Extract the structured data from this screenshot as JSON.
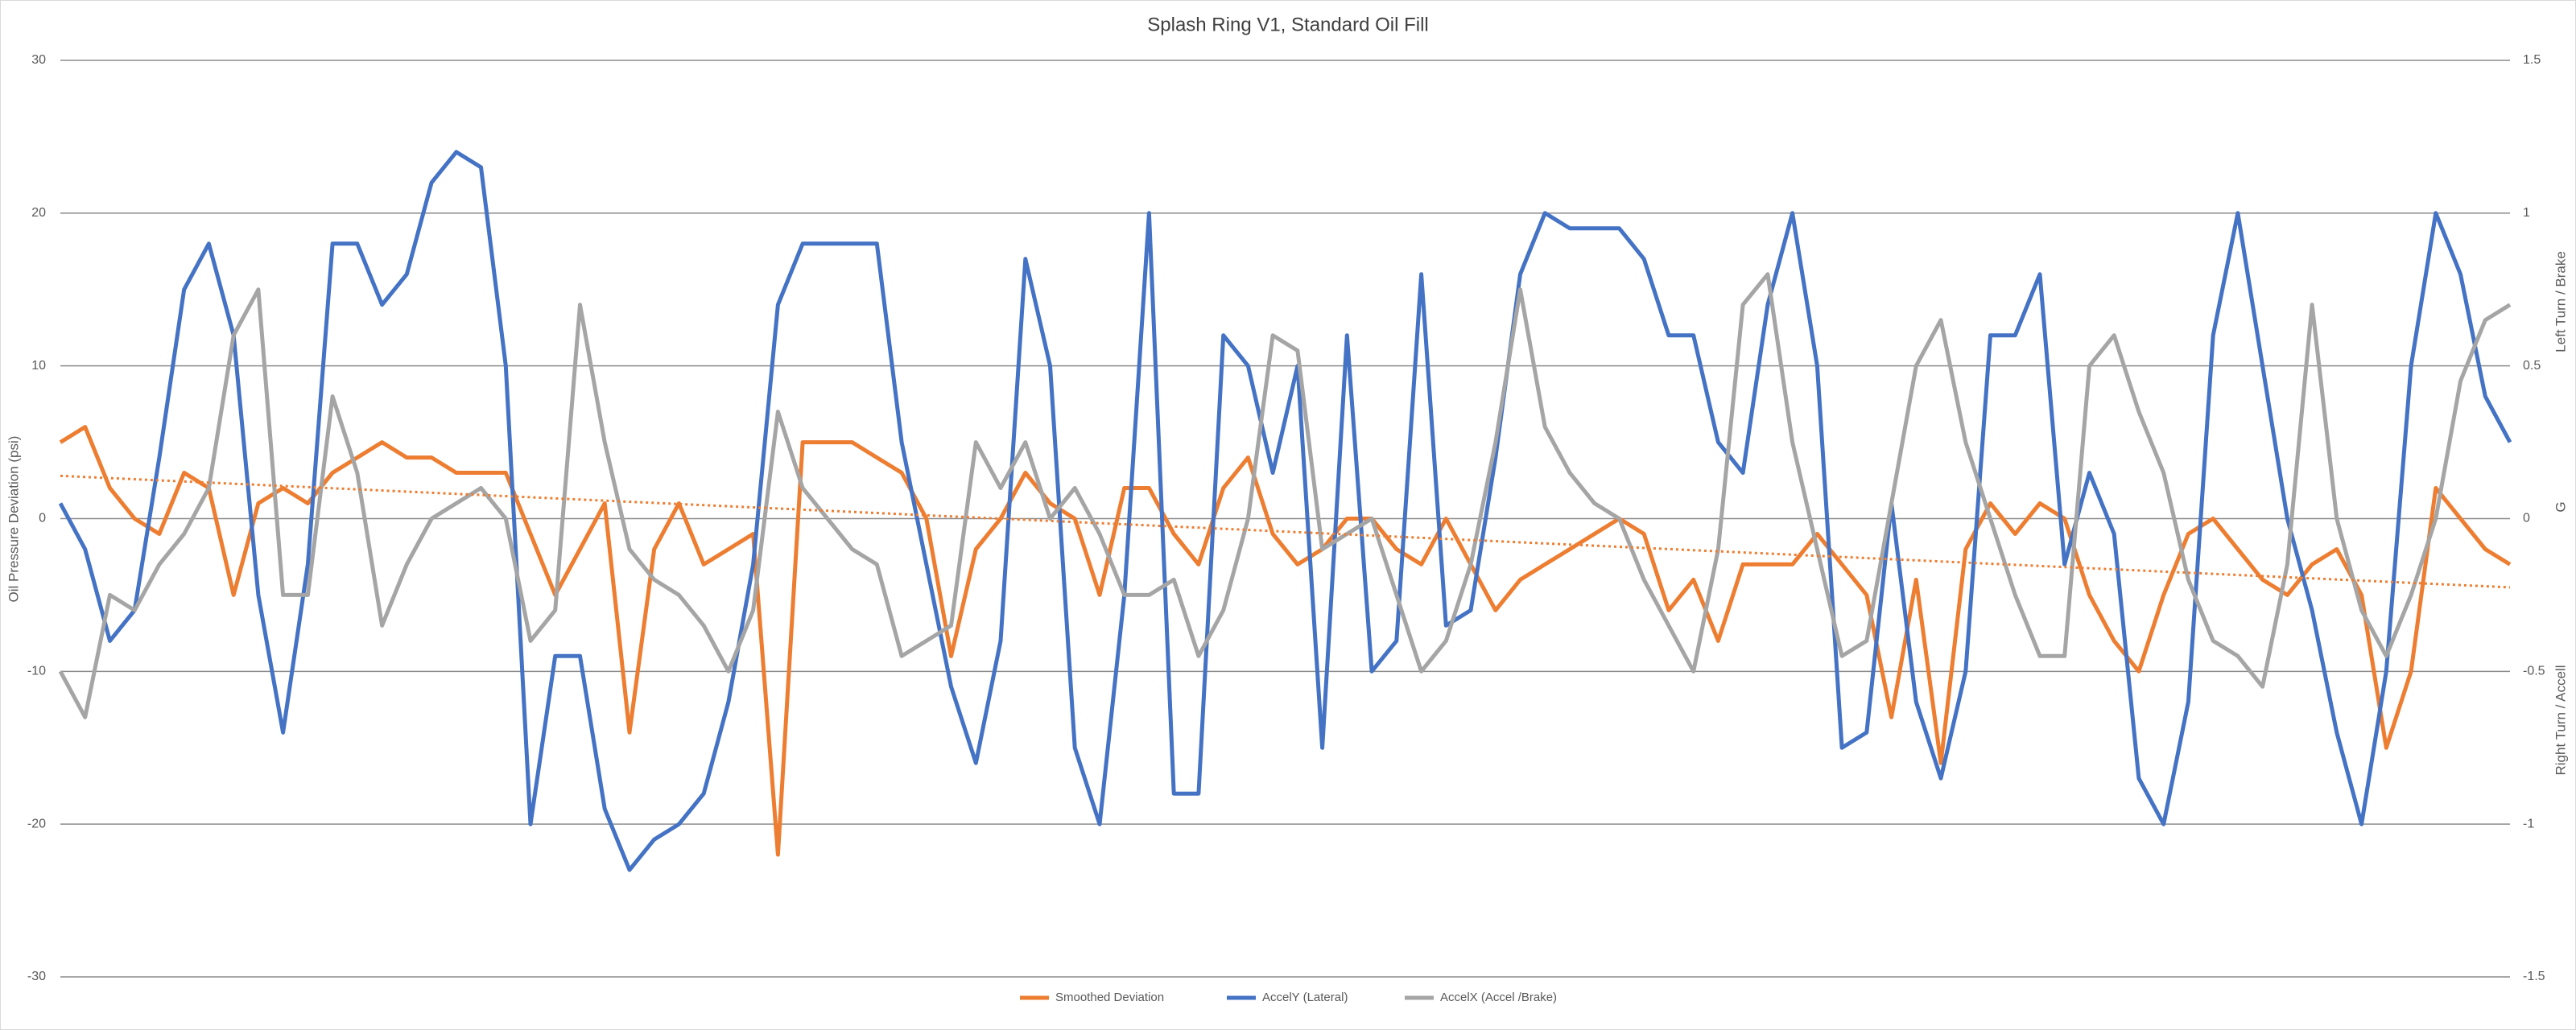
{
  "chart_data": {
    "type": "line",
    "title": "Splash Ring V1, Standard Oil Fill",
    "ylabel": "Oil Pressure Deviation (psi)",
    "y2label": "G",
    "y2annotations": [
      "Left Turn / Brake",
      "Right Turn / Accell"
    ],
    "ylim": [
      -30,
      30
    ],
    "yticks": [
      -30,
      -20,
      -10,
      0,
      10,
      20,
      30
    ],
    "y2lim": [
      -1.5,
      1.5
    ],
    "y2ticks": [
      -1.5,
      -1,
      -0.5,
      0,
      0.5,
      1,
      1.5
    ],
    "grid": true,
    "legend": "bottom",
    "series": [
      {
        "name": "Smoothed Deviation",
        "color": "#ed7d31",
        "axis": "y",
        "values": [
          5,
          6,
          2,
          0,
          -1,
          3,
          2,
          -5,
          1,
          2,
          1,
          3,
          4,
          5,
          4,
          4,
          3,
          3,
          3,
          -1,
          -5,
          -2,
          1,
          -14,
          -2,
          1,
          -3,
          -2,
          -1,
          -22,
          5,
          5,
          5,
          4,
          3,
          0,
          -9,
          -2,
          0,
          3,
          1,
          0,
          -5,
          2,
          2,
          -1,
          -3,
          2,
          4,
          -1,
          -3,
          -2,
          0,
          0,
          -2,
          -3,
          0,
          -3,
          -6,
          -4,
          -3,
          -2,
          -1,
          0,
          -1,
          -6,
          -4,
          -8,
          -3,
          -3,
          -3,
          -1,
          -3,
          -5,
          -13,
          -4,
          -16,
          -2,
          1,
          -1,
          1,
          0,
          -5,
          -8,
          -10,
          -5,
          -1,
          0,
          -2,
          -4,
          -5,
          -3,
          -2,
          -5,
          -15,
          -10,
          2,
          0,
          -2,
          -3
        ]
      },
      {
        "name": "AccelY (Lateral)",
        "color": "#4472c4",
        "axis": "y2",
        "values": [
          0.05,
          -0.1,
          -0.4,
          -0.3,
          0.2,
          0.75,
          0.9,
          0.6,
          -0.25,
          -0.7,
          -0.15,
          0.9,
          0.9,
          0.7,
          0.8,
          1.1,
          1.2,
          1.15,
          0.5,
          -1,
          -0.45,
          -0.45,
          -0.95,
          -1.15,
          -1.05,
          -1,
          -0.9,
          -0.6,
          -0.15,
          0.7,
          0.9,
          0.9,
          0.9,
          0.9,
          0.25,
          -0.15,
          -0.55,
          -0.8,
          -0.4,
          0.85,
          0.5,
          -0.75,
          -1,
          -0.25,
          1,
          -0.9,
          -0.9,
          0.6,
          0.5,
          0.15,
          0.5,
          -0.75,
          0.6,
          -0.5,
          -0.4,
          0.8,
          -0.35,
          -0.3,
          0.2,
          0.8,
          1,
          0.95,
          0.95,
          0.95,
          0.85,
          0.6,
          0.6,
          0.25,
          0.15,
          0.7,
          1,
          0.5,
          -0.75,
          -0.7,
          0.05,
          -0.6,
          -0.85,
          -0.5,
          0.6,
          0.6,
          0.8,
          -0.15,
          0.15,
          -0.05,
          -0.85,
          -1,
          -0.6,
          0.6,
          1,
          0.5,
          0,
          -0.3,
          -0.7,
          -1,
          -0.5,
          0.5,
          1,
          0.8,
          0.4,
          0.25
        ]
      },
      {
        "name": "AccelX (Accel /Brake)",
        "color": "#a5a5a5",
        "axis": "y2",
        "values": [
          -0.5,
          -0.65,
          -0.25,
          -0.3,
          -0.15,
          -0.05,
          0.1,
          0.6,
          0.75,
          -0.25,
          -0.25,
          0.4,
          0.15,
          -0.35,
          -0.15,
          0,
          0.05,
          0.1,
          0,
          -0.4,
          -0.3,
          0.7,
          0.25,
          -0.1,
          -0.2,
          -0.25,
          -0.35,
          -0.5,
          -0.3,
          0.35,
          0.1,
          0,
          -0.1,
          -0.15,
          -0.45,
          -0.4,
          -0.35,
          0.25,
          0.1,
          0.25,
          0,
          0.1,
          -0.05,
          -0.25,
          -0.25,
          -0.2,
          -0.45,
          -0.3,
          0,
          0.6,
          0.55,
          -0.1,
          -0.05,
          0,
          -0.25,
          -0.5,
          -0.4,
          -0.15,
          0.25,
          0.75,
          0.3,
          0.15,
          0.05,
          0,
          -0.2,
          -0.35,
          -0.5,
          -0.1,
          0.7,
          0.8,
          0.25,
          -0.1,
          -0.45,
          -0.4,
          0.05,
          0.5,
          0.65,
          0.25,
          0,
          -0.25,
          -0.45,
          -0.45,
          0.5,
          0.6,
          0.35,
          0.15,
          -0.2,
          -0.4,
          -0.45,
          -0.55,
          -0.15,
          0.7,
          0,
          -0.3,
          -0.45,
          -0.25,
          0,
          0.45,
          0.65,
          0.7
        ]
      }
    ],
    "trendline": {
      "color": "#ed7d31",
      "values": [
        2.8,
        -4.5
      ]
    }
  }
}
